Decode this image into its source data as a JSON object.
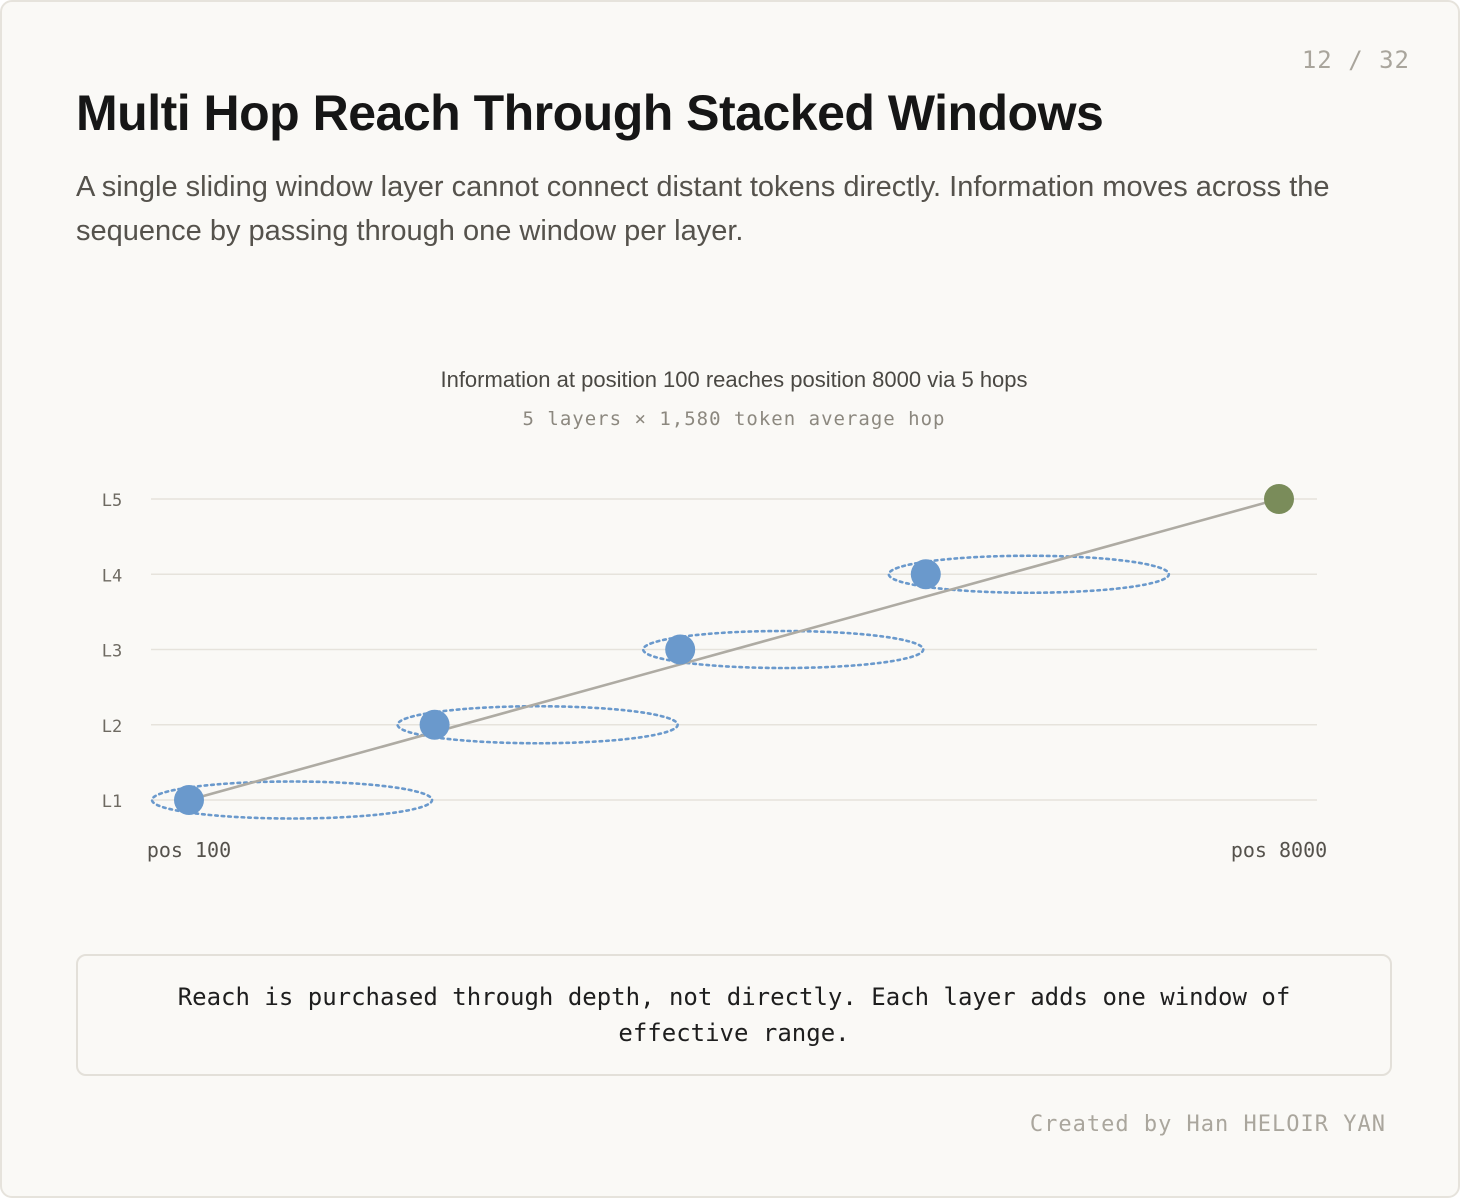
{
  "page": {
    "number": "12 / 32",
    "title": "Multi Hop Reach Through Stacked Windows",
    "subtitle": "A single sliding window layer cannot connect distant tokens directly. Information moves across the sequence by passing through one window per layer."
  },
  "diagram": {
    "heading": "Information at position 100 reaches position 8000 via 5 hops",
    "subheading": "5 layers × 1,580 token average hop",
    "layers": [
      "L1",
      "L2",
      "L3",
      "L4",
      "L5"
    ],
    "start_label": "pos 100",
    "end_label": "pos 8000",
    "colors": {
      "node": "#6a99cc",
      "target": "#7a8c5a",
      "path": "#aeaba3",
      "window": "#6a99cc",
      "grid": "#e6e3dc"
    }
  },
  "chart_data": {
    "type": "scatter",
    "x_range": [
      100,
      8000
    ],
    "layers": [
      "L1",
      "L2",
      "L3",
      "L4",
      "L5"
    ],
    "hops": [
      {
        "layer": "L1",
        "position": 100,
        "window": true
      },
      {
        "layer": "L2",
        "position": 1880,
        "window": true
      },
      {
        "layer": "L3",
        "position": 3660,
        "window": true
      },
      {
        "layer": "L4",
        "position": 5440,
        "window": true
      },
      {
        "layer": "L5",
        "position": 8000,
        "window": false
      }
    ],
    "window_span": 2030
  },
  "footer": {
    "note": "Reach is purchased through depth, not directly. Each layer adds one window of effective range.",
    "credit": "Created by Han HELOIR YAN"
  }
}
